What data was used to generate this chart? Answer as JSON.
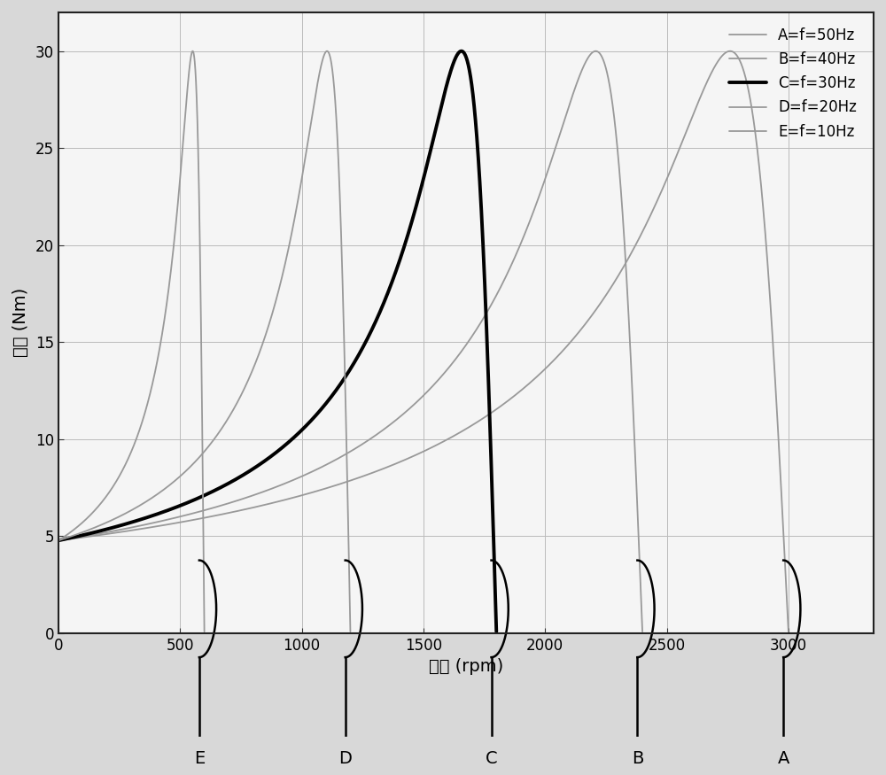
{
  "title": "",
  "xlabel": "速度 (rpm)",
  "ylabel": "转矩 (Nm)",
  "xlim": [
    0,
    3350
  ],
  "ylim": [
    0,
    32
  ],
  "xticks": [
    0,
    500,
    1000,
    1500,
    2000,
    2500,
    3000
  ],
  "yticks": [
    0,
    5,
    10,
    15,
    20,
    25,
    30
  ],
  "curves": [
    {
      "label": "A=f=50Hz",
      "sync_rpm": 3000,
      "color": "#999999",
      "lw": 1.3,
      "s_m": 0.08,
      "T0": 6.5
    },
    {
      "label": "B=f=40Hz",
      "sync_rpm": 2400,
      "color": "#999999",
      "lw": 1.3,
      "s_m": 0.08,
      "T0": 8.5
    },
    {
      "label": "C=f=30Hz",
      "sync_rpm": 1800,
      "color": "#000000",
      "lw": 2.8,
      "s_m": 0.08,
      "T0": 11.0
    },
    {
      "label": "D=f=20Hz",
      "sync_rpm": 1200,
      "color": "#999999",
      "lw": 1.3,
      "s_m": 0.08,
      "T0": 15.0
    },
    {
      "label": "E=f=10Hz",
      "sync_rpm": 600,
      "color": "#999999",
      "lw": 1.3,
      "s_m": 0.08,
      "T0": 30.0
    }
  ],
  "bracket_positions": [
    600,
    1200,
    1800,
    2400,
    3000
  ],
  "bracket_labels": [
    "E",
    "D",
    "C",
    "B",
    "A"
  ],
  "background_color": "#f5f5f5",
  "grid_color": "#bbbbbb"
}
